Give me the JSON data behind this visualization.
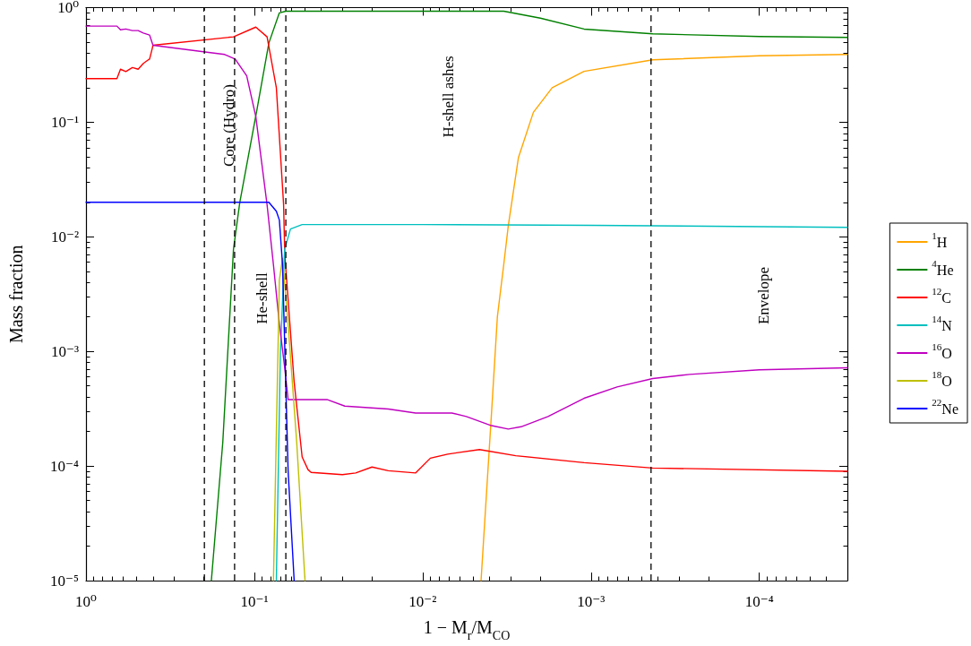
{
  "chart_data": {
    "type": "line",
    "xlabel": "1 − M$_{r}$/M$_{CO}$",
    "ylabel": "Mass fraction",
    "log": "xy",
    "xlim": [
      1,
      3e-05
    ],
    "xticks": [
      {
        "value": 1,
        "label": "10⁰"
      },
      {
        "value": 0.1,
        "label": "10⁻¹"
      },
      {
        "value": 0.01,
        "label": "10⁻²"
      },
      {
        "value": 0.001,
        "label": "10⁻³"
      },
      {
        "value": 0.0001,
        "label": "10⁻⁴"
      }
    ],
    "ylim": [
      1e-05,
      1
    ],
    "yticks": [
      {
        "value": 1e-05,
        "label": "10⁻⁵"
      },
      {
        "value": 0.0001,
        "label": "10⁻⁴"
      },
      {
        "value": 0.001,
        "label": "10⁻³"
      },
      {
        "value": 0.01,
        "label": "10⁻²"
      },
      {
        "value": 0.1,
        "label": "10⁻¹"
      },
      {
        "value": 1,
        "label": "10⁰"
      }
    ],
    "legend": "right",
    "line_style": "solid",
    "series": [
      {
        "name": "$^{1}$H",
        "color": "#ffa500",
        "x": [
          0.0045,
          0.0039,
          0.0036,
          0.0033,
          0.0031,
          0.0027,
          0.0022,
          0.0017,
          0.0011,
          0.00043,
          0.0001,
          3e-05
        ],
        "values": [
          1e-05,
          0.00029,
          0.002,
          0.0057,
          0.0125,
          0.049,
          0.122,
          0.2,
          0.278,
          0.35,
          0.38,
          0.39
        ]
      },
      {
        "name": "$^{4}$He",
        "color": "#008000",
        "x": [
          0.18,
          0.154,
          0.133,
          0.122,
          0.096,
          0.082,
          0.071,
          0.065,
          0.04,
          0.01,
          0.0033,
          0.002,
          0.0011,
          0.00043,
          0.0001,
          3e-05
        ],
        "values": [
          1e-05,
          0.00016,
          0.0078,
          0.02,
          0.134,
          0.49,
          0.9,
          0.93,
          0.93,
          0.93,
          0.93,
          0.81,
          0.65,
          0.59,
          0.56,
          0.55
        ]
      },
      {
        "name": "$^{12}$C",
        "color": "#ff0000",
        "x": [
          1,
          0.655,
          0.624,
          0.58,
          0.53,
          0.49,
          0.456,
          0.434,
          0.419,
          0.404,
          0.4,
          0.133,
          0.098,
          0.084,
          0.074,
          0.067,
          0.066,
          0.058,
          0.052,
          0.048,
          0.046,
          0.03,
          0.025,
          0.02,
          0.016,
          0.011,
          0.009,
          0.0071,
          0.0046,
          0.0028,
          0.0011,
          0.00043,
          3e-05
        ],
        "values": [
          0.24,
          0.24,
          0.29,
          0.277,
          0.3,
          0.29,
          0.326,
          0.344,
          0.356,
          0.44,
          0.47,
          0.556,
          0.676,
          0.556,
          0.2,
          0.019,
          0.0072,
          0.00054,
          0.00012,
          9.3e-05,
          8.8e-05,
          8.4e-05,
          8.7e-05,
          9.8e-05,
          9.1e-05,
          8.7e-05,
          0.000117,
          0.000127,
          0.000139,
          0.000123,
          0.000107,
          9.6e-05,
          9e-05
        ]
      },
      {
        "name": "$^{14}$N",
        "color": "#00bfbf",
        "x": [
          0.074,
          0.07,
          0.066,
          0.061,
          0.052,
          0.01,
          0.001,
          3e-05
        ],
        "values": [
          1e-05,
          0.00098,
          0.0078,
          0.0117,
          0.0128,
          0.0128,
          0.0126,
          0.0121
        ]
      },
      {
        "name": "$^{16}$O",
        "color": "#bf00bf",
        "x": [
          1,
          0.655,
          0.624,
          0.58,
          0.53,
          0.49,
          0.456,
          0.419,
          0.4,
          0.196,
          0.15,
          0.13,
          0.111,
          0.098,
          0.084,
          0.077,
          0.071,
          0.066,
          0.063,
          0.037,
          0.029,
          0.016,
          0.011,
          0.0067,
          0.0055,
          0.0039,
          0.0031,
          0.0026,
          0.0018,
          0.0011,
          0.0007,
          0.00043,
          0.00026,
          0.0001,
          3e-05
        ],
        "values": [
          0.69,
          0.69,
          0.64,
          0.65,
          0.63,
          0.63,
          0.6,
          0.576,
          0.47,
          0.41,
          0.39,
          0.356,
          0.254,
          0.112,
          0.019,
          0.0057,
          0.00174,
          0.00072,
          0.00038,
          0.00038,
          0.000333,
          0.000314,
          0.00029,
          0.00029,
          0.00027,
          0.000225,
          0.00021,
          0.00022,
          0.00027,
          0.00039,
          0.00049,
          0.00058,
          0.00063,
          0.00069,
          0.00072
        ]
      },
      {
        "name": "$^{18}$O",
        "color": "#bfbf00",
        "x": [
          0.077,
          0.071,
          0.068,
          0.063,
          0.056,
          0.05
        ],
        "values": [
          1e-05,
          0.0042,
          0.0065,
          0.00174,
          0.00016,
          1e-05
        ]
      },
      {
        "name": "$^{22}$Ne",
        "color": "#0000ff",
        "x": [
          1,
          0.082,
          0.074,
          0.071,
          0.068,
          0.063,
          0.058
        ],
        "values": [
          0.02,
          0.02,
          0.0167,
          0.014,
          0.0057,
          9.1e-05,
          1e-05
        ]
      }
    ],
    "ref_lines": [
      {
        "axis": "x",
        "value": 0.198,
        "label": null,
        "color": "#000000",
        "line_style": "dashed"
      },
      {
        "axis": "x",
        "value": 0.131,
        "label": null,
        "color": "#000000",
        "line_style": "dashed"
      },
      {
        "axis": "x",
        "value": 0.065,
        "label": null,
        "color": "#000000",
        "line_style": "dashed"
      },
      {
        "axis": "x",
        "value": 0.00044,
        "label": null,
        "color": "#000000",
        "line_style": "dashed"
      }
    ],
    "annotations": [
      "Core (Hydro)",
      "He-shell",
      "H-shell ashes",
      "Envelope"
    ]
  }
}
